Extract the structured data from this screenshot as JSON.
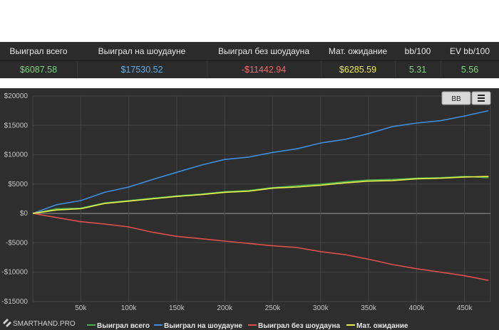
{
  "stats": {
    "columns": [
      {
        "key": "total",
        "header": "Выиграл всего",
        "value": "$6087.58",
        "color": "#7cd67c"
      },
      {
        "key": "showdown",
        "header": "Выиграл на шоудауне",
        "value": "$17530.52",
        "color": "#5fb0ee"
      },
      {
        "key": "nonshowdown",
        "header": "Выиграл без шоудауна",
        "value": "-$11442.94",
        "color": "#f06a6a"
      },
      {
        "key": "ev",
        "header": "Мат. ожидание",
        "value": "$6285.59",
        "color": "#ecec4a"
      },
      {
        "key": "bb100",
        "header": "bb/100",
        "value": "5.31",
        "color": "#7cd67c"
      },
      {
        "key": "evbb100",
        "header": "EV bb/100",
        "value": "5.56",
        "color": "#7cd67c"
      }
    ]
  },
  "toolbar": {
    "bb_label": "BB",
    "menu_icon": "hamburger-menu-icon"
  },
  "brand": {
    "text": "SMARTHAND.PRO",
    "icon": "smarthand-logo-icon"
  },
  "chart_data": {
    "type": "line",
    "x_ticks": [
      50000,
      100000,
      150000,
      200000,
      250000,
      300000,
      350000,
      400000,
      450000
    ],
    "x_tick_labels": [
      "50k",
      "100k",
      "150k",
      "200k",
      "250k",
      "300k",
      "350k",
      "400k",
      "450k"
    ],
    "y_ticks": [
      -15000,
      -10000,
      -5000,
      0,
      5000,
      10000,
      15000,
      20000
    ],
    "y_tick_labels": [
      "-$15000",
      "-$10000",
      "-$5000",
      "$0",
      "$5000",
      "$10000",
      "$15000",
      "$20000"
    ],
    "xlim": [
      0,
      477000
    ],
    "ylim": [
      -15000,
      20000
    ],
    "grid": true,
    "legend_position": "bottom",
    "series": [
      {
        "name": "Выиграл всего",
        "color": "#4caf50",
        "x": [
          0,
          25000,
          50000,
          75000,
          100000,
          125000,
          150000,
          175000,
          200000,
          225000,
          250000,
          275000,
          300000,
          325000,
          350000,
          375000,
          400000,
          425000,
          450000,
          475000
        ],
        "y": [
          0,
          800,
          900,
          1800,
          2200,
          2600,
          3000,
          3300,
          3700,
          3900,
          4400,
          4700,
          5000,
          5400,
          5700,
          5800,
          6000,
          6100,
          6300,
          6100
        ]
      },
      {
        "name": "Выиграл на шоудауне",
        "color": "#3f8ee0",
        "x": [
          0,
          25000,
          50000,
          75000,
          100000,
          125000,
          150000,
          175000,
          200000,
          225000,
          250000,
          275000,
          300000,
          325000,
          350000,
          375000,
          400000,
          425000,
          450000,
          475000
        ],
        "y": [
          0,
          1500,
          2200,
          3600,
          4500,
          5800,
          7000,
          8200,
          9200,
          9600,
          10400,
          11000,
          12000,
          12600,
          13600,
          14800,
          15400,
          15800,
          16600,
          17500
        ]
      },
      {
        "name": "Выиграл без шоудауна",
        "color": "#e0504a",
        "x": [
          0,
          25000,
          50000,
          75000,
          100000,
          125000,
          150000,
          175000,
          200000,
          225000,
          250000,
          275000,
          300000,
          325000,
          350000,
          375000,
          400000,
          425000,
          450000,
          475000
        ],
        "y": [
          0,
          -700,
          -1400,
          -1800,
          -2300,
          -3200,
          -3900,
          -4300,
          -4700,
          -5100,
          -5500,
          -5800,
          -6500,
          -7000,
          -7800,
          -8700,
          -9400,
          -10000,
          -10600,
          -11400
        ]
      },
      {
        "name": "Мат. ожидание",
        "color": "#e8f04a",
        "x": [
          0,
          25000,
          50000,
          75000,
          100000,
          125000,
          150000,
          175000,
          200000,
          225000,
          250000,
          275000,
          300000,
          325000,
          350000,
          375000,
          400000,
          425000,
          450000,
          475000
        ],
        "y": [
          0,
          600,
          800,
          1700,
          2100,
          2500,
          2900,
          3200,
          3600,
          3800,
          4300,
          4500,
          4800,
          5200,
          5500,
          5600,
          5900,
          6000,
          6200,
          6300
        ]
      }
    ]
  }
}
